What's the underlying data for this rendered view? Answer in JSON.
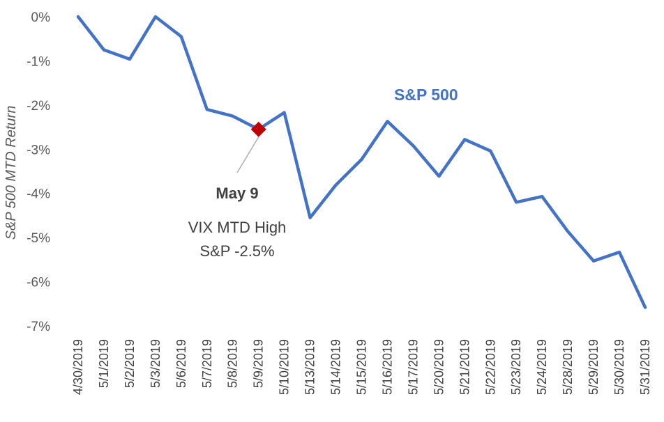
{
  "chart_data": {
    "type": "line",
    "title": "",
    "xlabel": "",
    "ylabel": "S&P 500 MTD Return",
    "ylim": [
      -7,
      0
    ],
    "yticks": [
      "0%",
      "-1%",
      "-2%",
      "-3%",
      "-4%",
      "-5%",
      "-6%",
      "-7%"
    ],
    "grid": false,
    "categories": [
      "4/30/2019",
      "5/1/2019",
      "5/2/2019",
      "5/3/2019",
      "5/6/2019",
      "5/7/2019",
      "5/8/2019",
      "5/9/2019",
      "5/10/2019",
      "5/13/2019",
      "5/14/2019",
      "5/15/2019",
      "5/16/2019",
      "5/17/2019",
      "5/20/2019",
      "5/21/2019",
      "5/22/2019",
      "5/23/2019",
      "5/24/2019",
      "5/28/2019",
      "5/29/2019",
      "5/30/2019",
      "5/31/2019"
    ],
    "series": [
      {
        "name": "S&P 500",
        "color": "#4472c4",
        "values": [
          0.0,
          -0.75,
          -0.96,
          0.0,
          -0.45,
          -2.1,
          -2.25,
          -2.55,
          -2.17,
          -4.55,
          -3.81,
          -3.23,
          -2.37,
          -2.92,
          -3.61,
          -2.78,
          -3.04,
          -4.2,
          -4.07,
          -4.86,
          -5.53,
          -5.33,
          -6.58
        ]
      }
    ],
    "marker": {
      "category": "5/9/2019",
      "value": -2.55,
      "color": "#c00000",
      "shape": "diamond"
    },
    "annotation": {
      "title": "May 9",
      "line1": "VIX MTD High",
      "line2": "S&P -2.5%"
    }
  }
}
